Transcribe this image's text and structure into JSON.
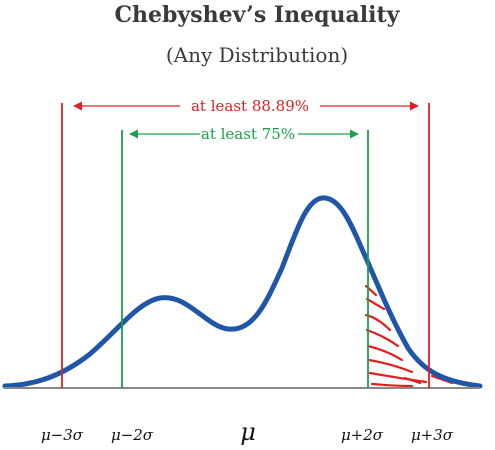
{
  "title": "Chebyshev’s Inequality",
  "subtitle": "(Any Distribution)",
  "annotations": {
    "three_sigma": "at least 88.89%",
    "two_sigma": "at least 75%"
  },
  "axis_labels": {
    "minus_3sigma": "μ−3σ",
    "minus_2sigma": "μ−2σ",
    "mu": "μ",
    "plus_2sigma": "μ+2σ",
    "plus_3sigma": "μ+3σ"
  },
  "colors": {
    "curve": "#1f56a8",
    "three_sigma": "#e02020",
    "two_sigma": "#1aa14a",
    "hatch": "#e02020",
    "axis": "#888888"
  }
}
